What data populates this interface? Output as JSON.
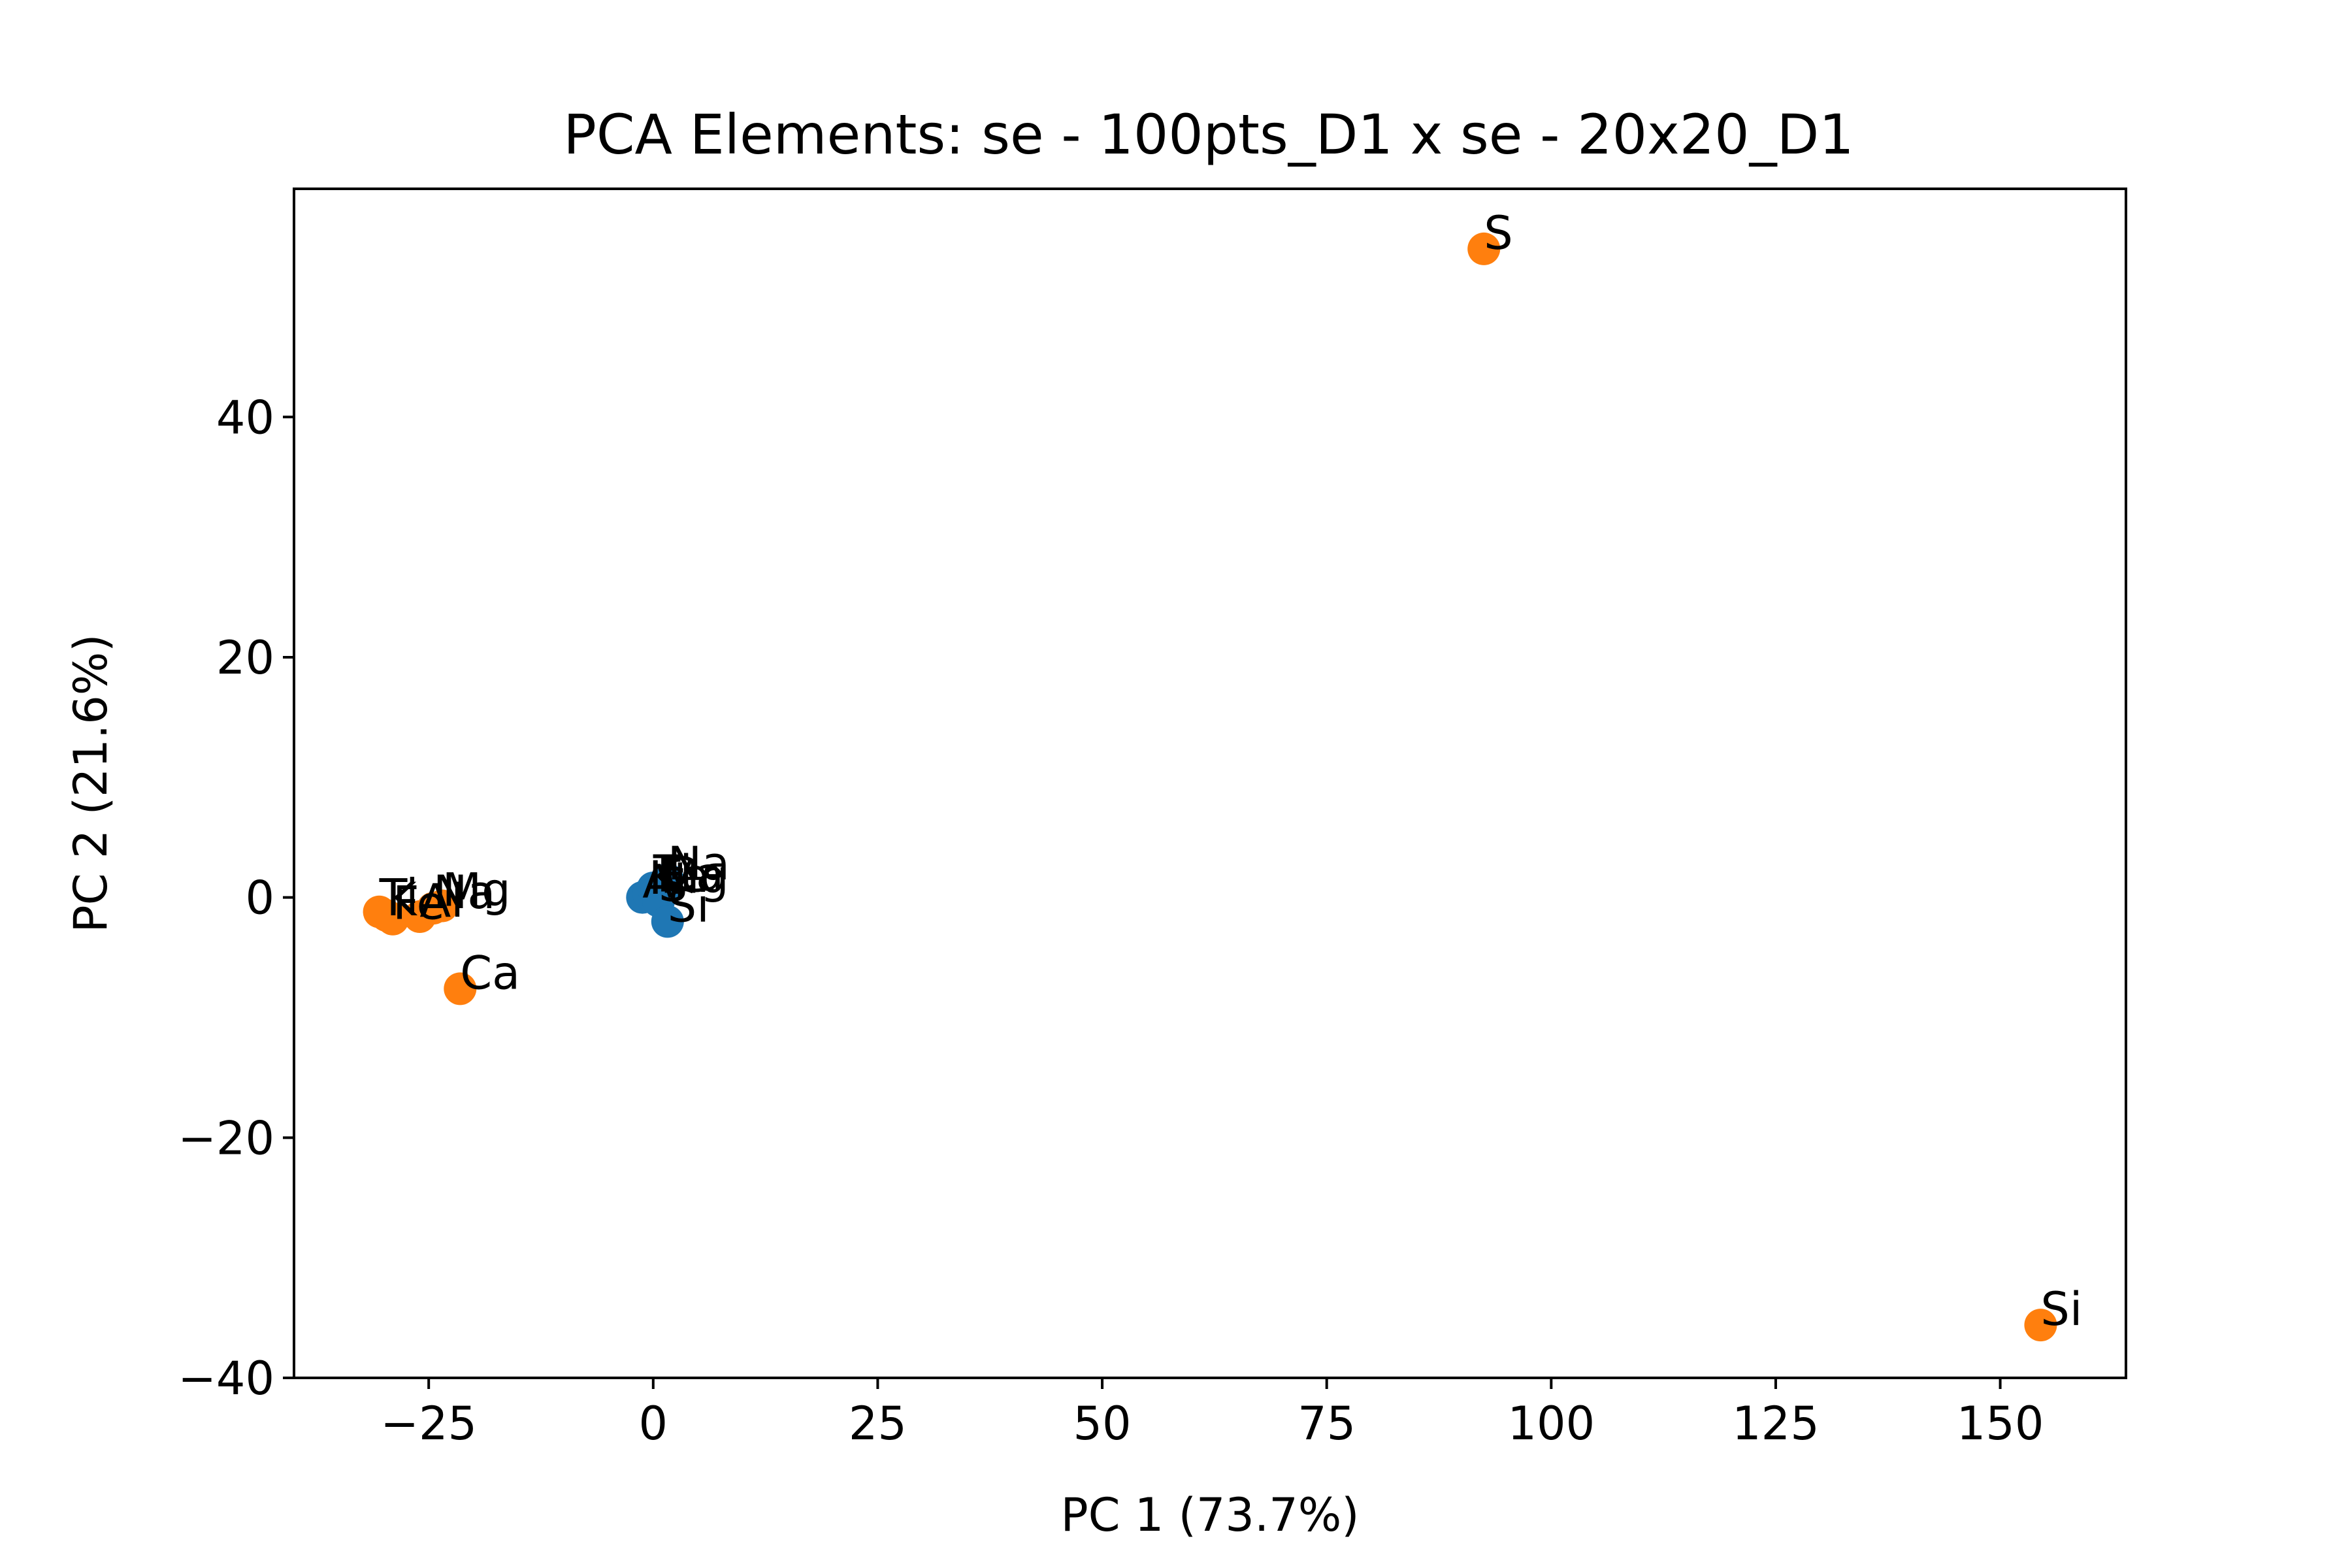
{
  "chart_data": {
    "type": "scatter",
    "title": "PCA Elements: se - 100pts_D1 x se - 20x20_D1",
    "xlabel": "PC 1 (73.7%)",
    "ylabel": "PC 2 (21.6%)",
    "xlim": [
      -40,
      164
    ],
    "ylim": [
      -40,
      59
    ],
    "xticks": [
      {
        "value": -25,
        "label": "−25"
      },
      {
        "value": 0,
        "label": "0"
      },
      {
        "value": 25,
        "label": "25"
      },
      {
        "value": 50,
        "label": "50"
      },
      {
        "value": 75,
        "label": "75"
      },
      {
        "value": 100,
        "label": "100"
      },
      {
        "value": 125,
        "label": "125"
      },
      {
        "value": 150,
        "label": "150"
      }
    ],
    "yticks": [
      {
        "value": -40,
        "label": "−40"
      },
      {
        "value": -20,
        "label": "−20"
      },
      {
        "value": 0,
        "label": "0"
      },
      {
        "value": 20,
        "label": "20"
      },
      {
        "value": 40,
        "label": "40"
      }
    ],
    "grid": false,
    "series": [
      {
        "color": "#1f77b4",
        "points": [
          {
            "x": -1.2,
            "y": 0.0,
            "label": "Al"
          },
          {
            "x": -0.5,
            "y": 0.3,
            "label": "K"
          },
          {
            "x": 0.0,
            "y": 0.8,
            "label": "Ti"
          },
          {
            "x": 0.4,
            "y": 0.5,
            "label": "Fe"
          },
          {
            "x": 0.8,
            "y": 0.4,
            "label": "Mg"
          },
          {
            "x": 1.2,
            "y": 0.6,
            "label": "Ca"
          },
          {
            "x": 1.6,
            "y": 1.5,
            "label": "Na"
          },
          {
            "x": 0.6,
            "y": -0.3,
            "label": "S"
          },
          {
            "x": 1.6,
            "y": -2.0,
            "label": "Si"
          }
        ]
      },
      {
        "color": "#ff7f0e",
        "points": [
          {
            "x": -30.5,
            "y": -1.2,
            "label": "Ti"
          },
          {
            "x": -29.7,
            "y": -1.5,
            "label": "K"
          },
          {
            "x": -29.0,
            "y": -1.8,
            "label": "Fe"
          },
          {
            "x": -26.0,
            "y": -1.6,
            "label": "Al"
          },
          {
            "x": -24.5,
            "y": -0.9,
            "label": "Na"
          },
          {
            "x": -23.5,
            "y": -0.7,
            "label": "Mg"
          },
          {
            "x": -21.5,
            "y": -7.6,
            "label": "Ca"
          },
          {
            "x": 92.5,
            "y": 54.0,
            "label": "S"
          },
          {
            "x": 154.5,
            "y": -35.6,
            "label": "Si"
          }
        ]
      }
    ]
  }
}
